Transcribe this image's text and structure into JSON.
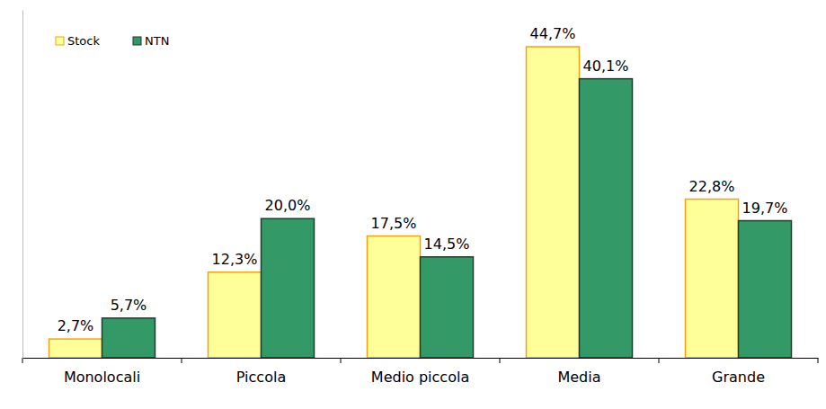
{
  "chart_data": {
    "type": "bar",
    "categories": [
      "Monolocali",
      "Piccola",
      "Medio piccola",
      "Media",
      "Grande"
    ],
    "series": [
      {
        "name": "Stock",
        "color": "#ffff99",
        "values": [
          2.7,
          12.3,
          17.5,
          44.7,
          22.8
        ],
        "value_labels": [
          "2,7%",
          "12,3%",
          "17,5%",
          "44,7%",
          "22,8%"
        ]
      },
      {
        "name": "NTN",
        "color": "#339966",
        "values": [
          5.7,
          20.0,
          14.5,
          40.1,
          19.7
        ],
        "value_labels": [
          "5,7%",
          "20,0%",
          "14,5%",
          "40,1%",
          "19,7%"
        ]
      }
    ],
    "ylim": [
      0,
      50
    ],
    "grid": false,
    "legend": "top-left",
    "data_labels": true,
    "tick_labels": "x"
  }
}
